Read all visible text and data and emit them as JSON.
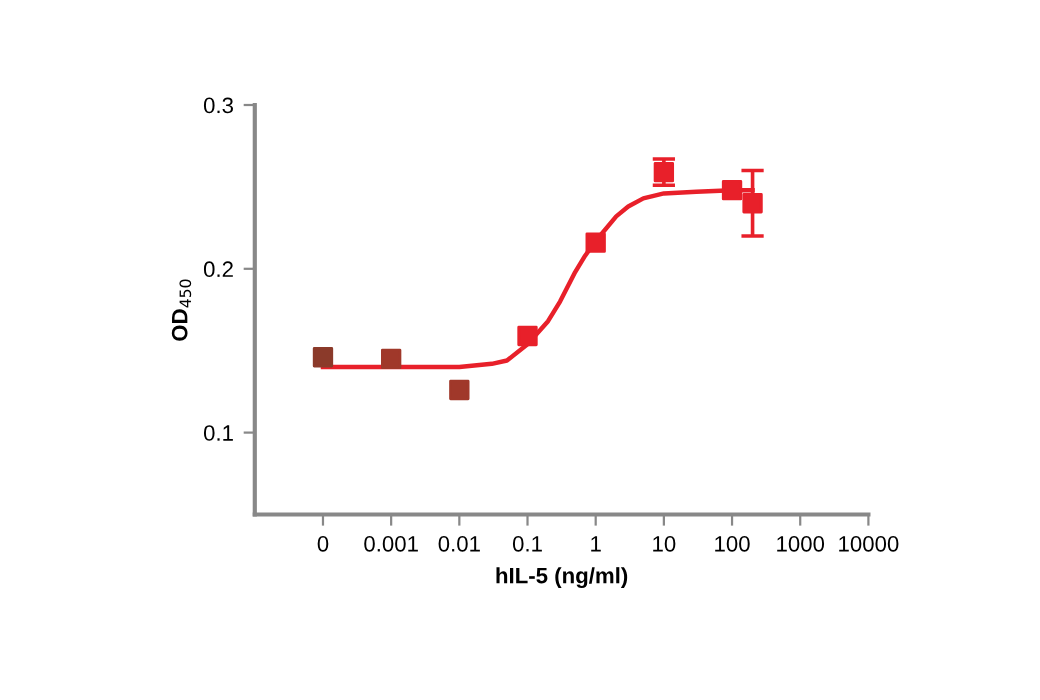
{
  "chart_data": {
    "type": "scatter",
    "xlabel": "hIL-5 (ng/ml)",
    "ylabel": "OD$_{450}$",
    "log": "x",
    "xlim": [
      1e-05,
      10000
    ],
    "ylim": [
      0.05,
      0.3
    ],
    "xticks": [
      {
        "value": 0.0001,
        "label": "0"
      },
      0.001,
      0.01,
      0.1,
      1,
      10,
      100,
      1000,
      10000
    ],
    "yticks": [
      0.1,
      0.2,
      0.3
    ],
    "grid": false,
    "legend": false,
    "series": [
      {
        "type": "line",
        "color": "#e8202a",
        "marker": "none",
        "line_style": "solid",
        "x": [
          0.0001,
          0.001,
          0.01,
          0.03,
          0.05,
          0.1,
          0.2,
          0.3,
          0.5,
          0.7,
          1,
          2,
          3,
          5,
          10,
          30,
          100,
          200
        ],
        "values": [
          0.14,
          0.14,
          0.14,
          0.142,
          0.144,
          0.154,
          0.168,
          0.18,
          0.198,
          0.208,
          0.217,
          0.232,
          0.238,
          0.243,
          0.246,
          0.247,
          0.248,
          0.248
        ]
      },
      {
        "type": "scatter",
        "marker": "square",
        "color": "#e8202a",
        "colors": [
          "#8b3a2a",
          "#a0382a",
          "#a0382a",
          null,
          null,
          null,
          null,
          null
        ],
        "x": [
          0.0001,
          0.001,
          0.01,
          0.1,
          1,
          10,
          100,
          200
        ],
        "values": [
          0.146,
          0.145,
          0.126,
          0.159,
          0.216,
          0.259,
          0.248,
          0.24
        ],
        "errors": [
          null,
          null,
          null,
          null,
          null,
          0.008,
          null,
          0.02
        ]
      }
    ]
  }
}
